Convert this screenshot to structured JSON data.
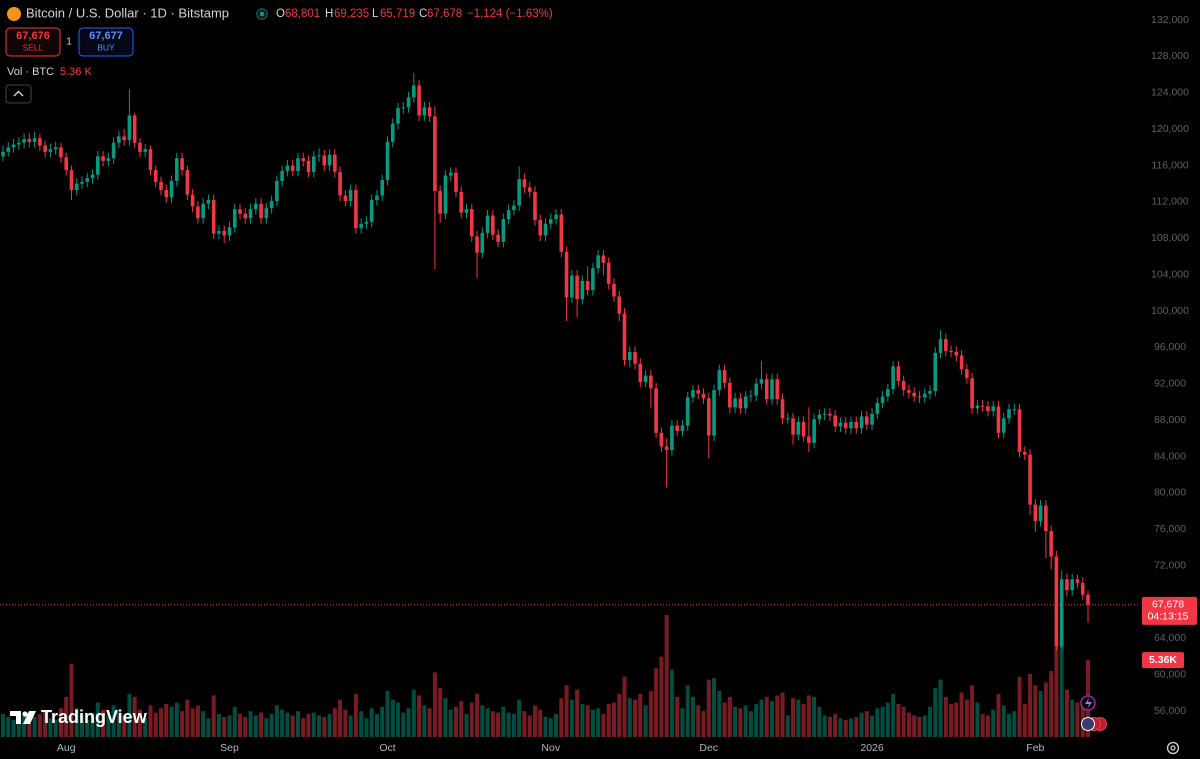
{
  "header": {
    "symbol": "Bitcoin / U.S. Dollar · 1D · Bitstamp",
    "o_label": "O",
    "open": "68,801",
    "h_label": "H",
    "high": "69,235",
    "l_label": "L",
    "low": "65,719",
    "c_label": "C",
    "close": "67,678",
    "change": "−1,124 (−1.63%)",
    "sell_price": "67,676",
    "sell": "SELL",
    "spread": "1",
    "buy_price": "67,677",
    "buy": "BUY",
    "volume_label": "Vol · BTC",
    "volume_value": "5.36 K",
    "logo": "TradingView"
  },
  "chart_data": {
    "type": "candlestick",
    "categories": [
      null,
      null,
      null,
      null,
      null,
      null,
      null,
      null,
      null,
      null,
      null,
      null,
      "Aug",
      null,
      null,
      null,
      null,
      null,
      null,
      null,
      null,
      null,
      null,
      null,
      null,
      null,
      null,
      null,
      null,
      null,
      null,
      null,
      null,
      null,
      null,
      null,
      null,
      null,
      null,
      null,
      null,
      null,
      null,
      "Sep",
      null,
      null,
      null,
      null,
      null,
      null,
      null,
      null,
      null,
      null,
      null,
      null,
      null,
      null,
      null,
      null,
      null,
      null,
      null,
      null,
      null,
      null,
      null,
      null,
      null,
      null,
      null,
      null,
      null,
      "Oct",
      null,
      null,
      null,
      null,
      null,
      null,
      null,
      null,
      null,
      null,
      null,
      null,
      null,
      null,
      null,
      null,
      null,
      null,
      null,
      null,
      null,
      null,
      null,
      null,
      null,
      null,
      null,
      null,
      null,
      null,
      "Nov",
      null,
      null,
      null,
      null,
      null,
      null,
      null,
      null,
      null,
      null,
      null,
      null,
      null,
      null,
      null,
      null,
      null,
      null,
      null,
      null,
      null,
      null,
      null,
      null,
      null,
      null,
      null,
      null,
      null,
      "Dec",
      null,
      null,
      null,
      null,
      null,
      null,
      null,
      null,
      null,
      null,
      null,
      null,
      null,
      null,
      null,
      null,
      null,
      null,
      null,
      null,
      null,
      null,
      null,
      null,
      null,
      null,
      null,
      null,
      null,
      null,
      "2026",
      null,
      null,
      null,
      null,
      null,
      null,
      null,
      null,
      null,
      null,
      null,
      null,
      null,
      null,
      null,
      null,
      null,
      null,
      null,
      null,
      null,
      null,
      null,
      null,
      null,
      null,
      null,
      null,
      null,
      null,
      "Feb",
      null,
      null,
      null,
      null,
      null,
      null,
      null,
      null,
      null,
      null
    ],
    "open": [
      117000,
      117500,
      118000,
      118300,
      118500,
      118900,
      118600,
      119000,
      118200,
      117500,
      117800,
      118000,
      116900,
      115500,
      113300,
      114000,
      114200,
      114600,
      115000,
      117000,
      116500,
      116800,
      118500,
      119200,
      118800,
      121500,
      118500,
      117500,
      117800,
      115500,
      114200,
      113300,
      112500,
      114300,
      116800,
      115500,
      112800,
      111500,
      110200,
      111800,
      112200,
      108500,
      108800,
      108300,
      109200,
      111200,
      110700,
      110200,
      111200,
      111800,
      110200,
      111300,
      112100,
      114300,
      115400,
      116000,
      115400,
      116800,
      116500,
      115300,
      117000,
      117100,
      116000,
      117200,
      115300,
      112700,
      112100,
      113300,
      109100,
      109600,
      109800,
      112200,
      112700,
      114400,
      118600,
      120600,
      122300,
      122400,
      123500,
      124800,
      121500,
      122400,
      121400,
      113200,
      110700,
      114900,
      115200,
      113100,
      110800,
      111200,
      108200,
      106400,
      108600,
      110500,
      108400,
      107600,
      110100,
      111100,
      111600,
      114500,
      113600,
      113100,
      110000,
      108300,
      109600,
      110100,
      110600,
      106500,
      101500,
      103900,
      101300,
      103300,
      102300,
      104700,
      106100,
      105300,
      103000,
      101600,
      99700,
      94600,
      95500,
      94200,
      92200,
      92900,
      91500,
      86600,
      85100,
      84700,
      87400,
      86800,
      87400,
      90500,
      91300,
      90900,
      90400,
      86300,
      91300,
      93500,
      92100,
      89400,
      90400,
      89300,
      90600,
      90700,
      92000,
      92500,
      90300,
      92500,
      90300,
      88200,
      88200,
      86400,
      87800,
      86200,
      85500,
      88100,
      88600,
      88700,
      88500,
      87300,
      87700,
      87100,
      87800,
      87100,
      88400,
      87500,
      88700,
      89900,
      90600,
      91400,
      93900,
      92300,
      91300,
      91000,
      90600,
      90500,
      90900,
      91200,
      95400,
      96900,
      95600,
      95500,
      95100,
      93600,
      92600,
      89300,
      89600,
      89500,
      89000,
      89500,
      86600,
      88200,
      89200,
      89200,
      84500,
      84200,
      78700,
      76900,
      78600,
      75800,
      73000,
      63100,
      70500,
      69300,
      70500,
      70100,
      68801
    ],
    "high": [
      118200,
      118600,
      118900,
      119100,
      119500,
      119600,
      119700,
      119500,
      118700,
      118400,
      118600,
      118500,
      117400,
      116000,
      114600,
      114800,
      115200,
      115600,
      117600,
      117600,
      117400,
      119100,
      119800,
      120000,
      124400,
      121800,
      119000,
      118400,
      118200,
      116000,
      114800,
      113900,
      114900,
      117400,
      117400,
      116000,
      113400,
      112100,
      112400,
      112800,
      112800,
      109400,
      109400,
      109800,
      111800,
      111800,
      111300,
      111800,
      112400,
      112400,
      111900,
      112700,
      114900,
      116000,
      116600,
      116600,
      117400,
      117400,
      117100,
      117600,
      117900,
      117700,
      117800,
      117800,
      115900,
      113300,
      113900,
      113900,
      110200,
      110400,
      112800,
      113300,
      115000,
      119200,
      121200,
      122900,
      123000,
      124100,
      126200,
      125400,
      123000,
      123000,
      122500,
      113800,
      115500,
      115800,
      115800,
      113700,
      111800,
      111800,
      108800,
      109200,
      111100,
      111100,
      109000,
      110700,
      111700,
      112200,
      115900,
      115100,
      114200,
      113700,
      110600,
      110200,
      110700,
      111200,
      111200,
      107100,
      104500,
      104500,
      103900,
      104900,
      105300,
      106700,
      106700,
      105900,
      103600,
      102200,
      100300,
      96100,
      96100,
      94800,
      93500,
      93500,
      92100,
      87200,
      86000,
      88000,
      88000,
      88000,
      91100,
      91900,
      91900,
      91500,
      91000,
      91900,
      94100,
      94100,
      92700,
      91000,
      91000,
      91200,
      91300,
      92600,
      94500,
      93100,
      93100,
      93100,
      90900,
      88800,
      88800,
      88400,
      88400,
      89400,
      88700,
      89200,
      89300,
      89300,
      89100,
      88300,
      88300,
      88400,
      88400,
      89000,
      89000,
      89300,
      90500,
      91200,
      92000,
      94500,
      94500,
      92900,
      91900,
      91600,
      91200,
      91500,
      91800,
      96000,
      97900,
      97500,
      96200,
      96100,
      95700,
      94200,
      93200,
      90200,
      90200,
      90100,
      90100,
      90100,
      88800,
      89800,
      89800,
      89800,
      85100,
      84800,
      79300,
      79200,
      79200,
      76400,
      73600,
      71500,
      71100,
      71100,
      71000,
      70700,
      69235
    ],
    "low": [
      116500,
      117000,
      117400,
      117700,
      117900,
      118000,
      118000,
      117600,
      116900,
      116900,
      117200,
      116300,
      114900,
      112200,
      112700,
      113400,
      113600,
      114000,
      114400,
      115900,
      115900,
      116200,
      117900,
      118200,
      118200,
      117900,
      116900,
      116900,
      114900,
      113600,
      112700,
      111900,
      111900,
      113700,
      114900,
      112200,
      110900,
      109600,
      109600,
      111200,
      107900,
      107900,
      107500,
      107700,
      108600,
      110100,
      109600,
      109600,
      110600,
      109600,
      109600,
      110700,
      111500,
      113700,
      114800,
      114800,
      114800,
      115900,
      114700,
      114700,
      116400,
      115400,
      115400,
      114700,
      112100,
      111500,
      111500,
      108500,
      108500,
      109000,
      109200,
      111600,
      112100,
      113800,
      118000,
      120000,
      121700,
      121800,
      122900,
      120900,
      120900,
      120800,
      104600,
      109700,
      110100,
      114300,
      112500,
      110200,
      110200,
      107600,
      103600,
      105800,
      108000,
      107800,
      107000,
      107000,
      109500,
      110500,
      111000,
      113000,
      112500,
      109400,
      107700,
      107700,
      109000,
      109500,
      105900,
      98900,
      100900,
      99300,
      100700,
      101700,
      101700,
      104100,
      103900,
      102400,
      101000,
      98900,
      94000,
      93800,
      93600,
      91600,
      91600,
      89300,
      86000,
      84500,
      80600,
      84100,
      86200,
      86200,
      86800,
      89900,
      90300,
      89800,
      83800,
      85700,
      90700,
      91500,
      88800,
      88800,
      88700,
      88700,
      90000,
      90100,
      91400,
      89700,
      89700,
      89700,
      87600,
      87600,
      85300,
      85800,
      85600,
      84500,
      84900,
      87500,
      88000,
      87900,
      86700,
      86700,
      86500,
      86500,
      86500,
      86500,
      86900,
      86900,
      88100,
      89300,
      90000,
      90800,
      91700,
      90700,
      90400,
      90000,
      89900,
      89900,
      90300,
      90600,
      94800,
      95000,
      94900,
      94500,
      93000,
      92000,
      88700,
      88700,
      88900,
      88400,
      88400,
      86000,
      86000,
      87600,
      88600,
      83900,
      83600,
      77600,
      75700,
      76300,
      72800,
      71600,
      62700,
      62900,
      68600,
      68700,
      69500,
      68200,
      65719
    ],
    "close": [
      117500,
      118000,
      118300,
      118500,
      118900,
      118600,
      119000,
      118200,
      117500,
      117800,
      118000,
      116900,
      115500,
      113300,
      114000,
      114200,
      114600,
      115000,
      117000,
      116500,
      116800,
      118500,
      119200,
      118800,
      121500,
      118500,
      117500,
      117800,
      115500,
      114200,
      113300,
      112500,
      114300,
      116800,
      115500,
      112800,
      111500,
      110200,
      111800,
      112200,
      108500,
      108800,
      108300,
      109200,
      111200,
      110700,
      110200,
      111200,
      111800,
      110200,
      111300,
      112100,
      114300,
      115400,
      116000,
      115400,
      116800,
      116500,
      115300,
      117000,
      117100,
      116000,
      117200,
      115300,
      112700,
      112100,
      113300,
      109100,
      109600,
      109800,
      112200,
      112700,
      114400,
      118600,
      120600,
      122300,
      122400,
      123500,
      124800,
      121500,
      122400,
      121400,
      113200,
      110700,
      114900,
      115200,
      113100,
      110800,
      111200,
      108200,
      106400,
      108600,
      110500,
      108400,
      107600,
      110100,
      111100,
      111600,
      114500,
      113600,
      113100,
      110000,
      108300,
      109600,
      110100,
      110600,
      106500,
      101500,
      103900,
      101300,
      103300,
      102300,
      104700,
      106100,
      105300,
      103000,
      101600,
      99700,
      94600,
      95500,
      94200,
      92200,
      92900,
      91500,
      86600,
      85100,
      84700,
      87400,
      86800,
      87400,
      90500,
      91300,
      90900,
      90400,
      86300,
      91300,
      93500,
      92100,
      89400,
      90400,
      89300,
      90600,
      90700,
      92000,
      92500,
      90300,
      92500,
      90300,
      88200,
      88200,
      86400,
      87800,
      86200,
      85500,
      88100,
      88600,
      88700,
      88500,
      87300,
      87700,
      87100,
      87800,
      87100,
      88400,
      87500,
      88700,
      89900,
      90600,
      91400,
      93900,
      92300,
      91300,
      91000,
      90600,
      90500,
      90900,
      91200,
      95400,
      96900,
      95600,
      95500,
      95100,
      93600,
      92600,
      89300,
      89600,
      89500,
      89000,
      89500,
      86600,
      88200,
      89200,
      89200,
      84500,
      84200,
      78700,
      76900,
      78600,
      75800,
      73000,
      63100,
      70500,
      69300,
      70500,
      70100,
      68800,
      67678
    ],
    "volume": [
      1600,
      1400,
      1200,
      1300,
      1500,
      1100,
      1400,
      1600,
      1700,
      1300,
      1200,
      2000,
      2800,
      5100,
      2000,
      1500,
      1200,
      1700,
      2400,
      1900,
      1600,
      2200,
      1800,
      1500,
      3000,
      2800,
      1900,
      1300,
      2200,
      1700,
      2000,
      2300,
      2100,
      2400,
      1800,
      2600,
      2000,
      2200,
      1800,
      1300,
      2900,
      1600,
      1400,
      1500,
      2100,
      1600,
      1400,
      1800,
      1500,
      1700,
      1300,
      1600,
      2200,
      1900,
      1700,
      1500,
      1800,
      1300,
      1600,
      1700,
      1500,
      1400,
      1600,
      2000,
      2600,
      1900,
      1500,
      3000,
      1800,
      1300,
      2000,
      1600,
      2100,
      3200,
      2600,
      2400,
      1700,
      2000,
      3300,
      2900,
      2200,
      2000,
      4500,
      3400,
      2700,
      1900,
      2100,
      2500,
      1600,
      2400,
      3000,
      2200,
      2000,
      1800,
      1700,
      2100,
      1700,
      1600,
      2600,
      1800,
      1500,
      2200,
      1900,
      1400,
      1300,
      1600,
      2700,
      3600,
      2600,
      3300,
      2300,
      2200,
      1900,
      2000,
      1600,
      2300,
      2400,
      3000,
      4200,
      2700,
      2600,
      3000,
      2200,
      3200,
      4800,
      5600,
      8500,
      4700,
      2800,
      2000,
      3600,
      2800,
      2200,
      1800,
      4000,
      4100,
      3200,
      2400,
      2800,
      2100,
      2000,
      2200,
      1800,
      2300,
      2600,
      2800,
      2500,
      2900,
      3100,
      1500,
      2700,
      2600,
      2300,
      2900,
      2800,
      2100,
      1500,
      1400,
      1600,
      1300,
      1200,
      1300,
      1400,
      1700,
      1800,
      1500,
      2000,
      2100,
      2400,
      3000,
      2300,
      2100,
      1700,
      1500,
      1400,
      1500,
      2100,
      3400,
      4000,
      2800,
      2300,
      2400,
      3100,
      2600,
      3600,
      2400,
      1600,
      1500,
      1900,
      3000,
      2200,
      1600,
      1800,
      4200,
      2300,
      4400,
      3600,
      3200,
      3800,
      4600,
      6300,
      6900,
      3300,
      2600,
      2400,
      2600,
      5360
    ],
    "up_color": "#089981",
    "down_color": "#f23645",
    "ylim": [
      53150,
      134200
    ],
    "yticks": [
      {
        "value": 56000,
        "label": "56,000"
      },
      {
        "value": 60000,
        "label": "60,000"
      },
      {
        "value": 64000,
        "label": "64,000"
      },
      {
        "value": 68000,
        "label": "68,000"
      },
      {
        "value": 72000,
        "label": "72,000"
      },
      {
        "value": 76000,
        "label": "76,000"
      },
      {
        "value": 80000,
        "label": "80,000"
      },
      {
        "value": 84000,
        "label": "84,000"
      },
      {
        "value": 88000,
        "label": "88,000"
      },
      {
        "value": 92000,
        "label": "92,000"
      },
      {
        "value": 96000,
        "label": "96,000"
      },
      {
        "value": 100000,
        "label": "100,000"
      },
      {
        "value": 104000,
        "label": "104,000"
      },
      {
        "value": 108000,
        "label": "108,000"
      },
      {
        "value": 112000,
        "label": "112,000"
      },
      {
        "value": 116000,
        "label": "116,000"
      },
      {
        "value": 120000,
        "label": "120,000"
      },
      {
        "value": 124000,
        "label": "124,000"
      },
      {
        "value": 128000,
        "label": "128,000"
      },
      {
        "value": 132000,
        "label": "132,000"
      }
    ],
    "last_price_label": "67,678",
    "countdown": "04:13:15",
    "last_volume_label": "5.36K"
  }
}
